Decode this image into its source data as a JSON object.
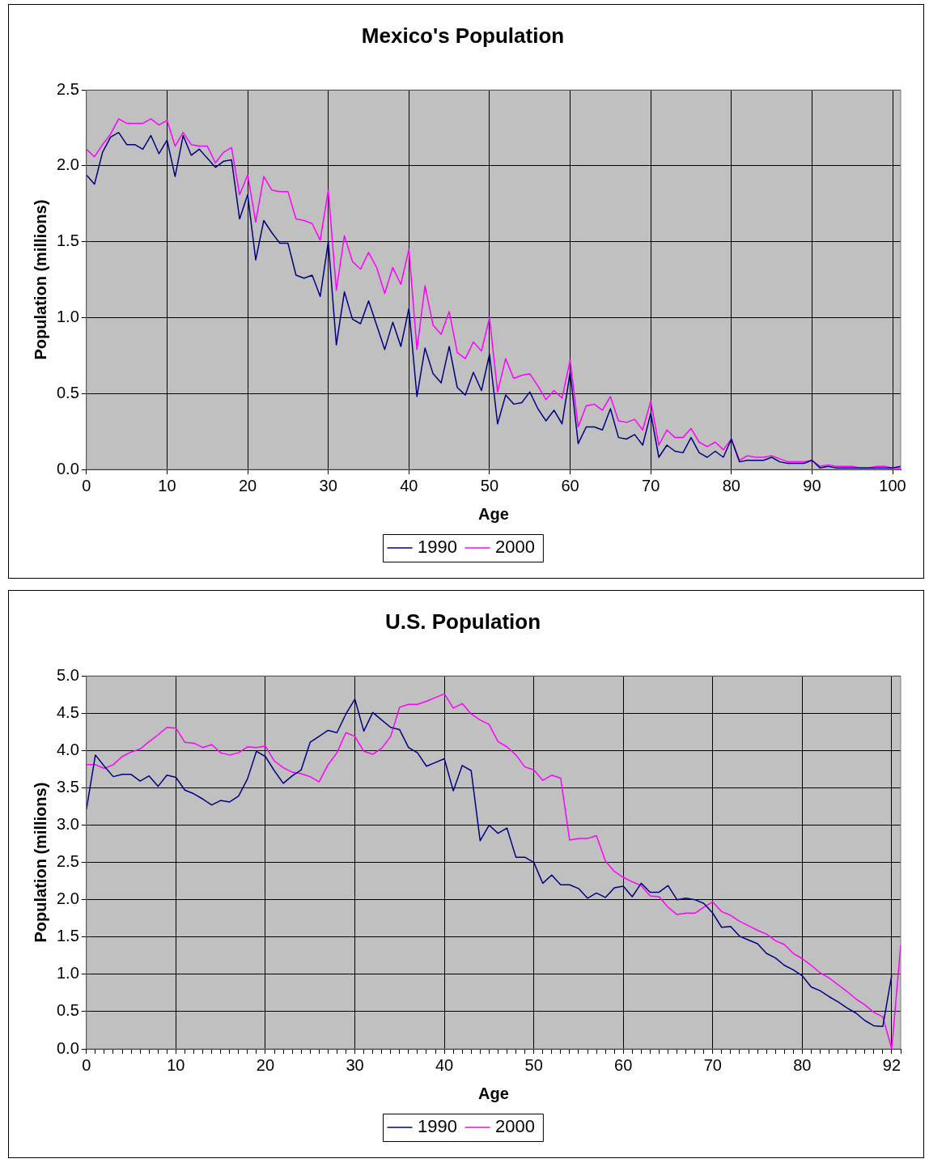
{
  "chart_data": [
    {
      "type": "line",
      "title": "Mexico's Population",
      "xlabel": "Age",
      "ylabel": "Population (millions)",
      "x": [
        0,
        1,
        2,
        3,
        4,
        5,
        6,
        7,
        8,
        9,
        10,
        11,
        12,
        13,
        14,
        15,
        16,
        17,
        18,
        19,
        20,
        21,
        22,
        23,
        24,
        25,
        26,
        27,
        28,
        29,
        30,
        31,
        32,
        33,
        34,
        35,
        36,
        37,
        38,
        39,
        40,
        41,
        42,
        43,
        44,
        45,
        46,
        47,
        48,
        49,
        50,
        51,
        52,
        53,
        54,
        55,
        56,
        57,
        58,
        59,
        60,
        61,
        62,
        63,
        64,
        65,
        66,
        67,
        68,
        69,
        70,
        71,
        72,
        73,
        74,
        75,
        76,
        77,
        78,
        79,
        80,
        81,
        82,
        83,
        84,
        85,
        86,
        87,
        88,
        89,
        90,
        91,
        92,
        93,
        94,
        95,
        96,
        97,
        98,
        99,
        100,
        101
      ],
      "series": [
        {
          "name": "1990",
          "color": "#000080",
          "values": [
            1.94,
            1.88,
            2.09,
            2.19,
            2.22,
            2.14,
            2.14,
            2.11,
            2.2,
            2.08,
            2.17,
            1.93,
            2.2,
            2.07,
            2.11,
            2.05,
            1.99,
            2.03,
            2.04,
            1.65,
            1.81,
            1.38,
            1.64,
            1.56,
            1.49,
            1.49,
            1.28,
            1.26,
            1.28,
            1.14,
            1.5,
            0.82,
            1.17,
            0.99,
            0.96,
            1.11,
            0.95,
            0.79,
            0.97,
            0.81,
            1.06,
            0.48,
            0.8,
            0.63,
            0.57,
            0.81,
            0.54,
            0.49,
            0.64,
            0.52,
            0.76,
            0.3,
            0.49,
            0.43,
            0.44,
            0.51,
            0.4,
            0.32,
            0.39,
            0.3,
            0.64,
            0.17,
            0.28,
            0.28,
            0.26,
            0.4,
            0.21,
            0.2,
            0.23,
            0.16,
            0.37,
            0.08,
            0.16,
            0.12,
            0.11,
            0.21,
            0.11,
            0.08,
            0.12,
            0.08,
            0.2,
            0.05,
            0.06,
            0.06,
            0.06,
            0.08,
            0.05,
            0.04,
            0.04,
            0.04,
            0.06,
            0.01,
            0.02,
            0.01,
            0.01,
            0.01,
            0.01,
            0.01,
            0.01,
            0.01,
            0.01,
            0.02
          ]
        },
        {
          "name": "2000",
          "color": "#ff00ff",
          "values": [
            2.11,
            2.06,
            2.14,
            2.21,
            2.31,
            2.28,
            2.28,
            2.28,
            2.31,
            2.27,
            2.3,
            2.13,
            2.22,
            2.14,
            2.13,
            2.13,
            2.02,
            2.09,
            2.12,
            1.81,
            1.94,
            1.63,
            1.93,
            1.84,
            1.83,
            1.83,
            1.65,
            1.64,
            1.62,
            1.51,
            1.84,
            1.18,
            1.54,
            1.37,
            1.32,
            1.43,
            1.33,
            1.16,
            1.33,
            1.22,
            1.45,
            0.79,
            1.21,
            0.95,
            0.89,
            1.04,
            0.77,
            0.73,
            0.84,
            0.78,
            1.0,
            0.51,
            0.73,
            0.6,
            0.62,
            0.63,
            0.55,
            0.46,
            0.52,
            0.47,
            0.72,
            0.28,
            0.42,
            0.43,
            0.39,
            0.48,
            0.32,
            0.31,
            0.33,
            0.26,
            0.45,
            0.16,
            0.26,
            0.21,
            0.21,
            0.27,
            0.18,
            0.15,
            0.18,
            0.13,
            0.2,
            0.06,
            0.09,
            0.08,
            0.08,
            0.09,
            0.07,
            0.05,
            0.05,
            0.05,
            0.06,
            0.02,
            0.03,
            0.02,
            0.02,
            0.02,
            0.01,
            0.01,
            0.02,
            0.02,
            0.01,
            0.01
          ]
        }
      ],
      "xlim": [
        0,
        101
      ],
      "xticks": [
        0,
        10,
        20,
        30,
        40,
        50,
        60,
        70,
        80,
        90,
        100
      ],
      "ylim": [
        0,
        2.5
      ],
      "yticks": [
        {
          "value": 0,
          "label": "0.0"
        },
        {
          "value": 0.5,
          "label": "0.5"
        },
        {
          "value": 1,
          "label": "1.0"
        },
        {
          "value": 1.5,
          "label": "1.5"
        },
        {
          "value": 2,
          "label": "2.0"
        },
        {
          "value": 2.5,
          "label": "2.5"
        }
      ],
      "grid": true,
      "legend": "bottom"
    },
    {
      "type": "line",
      "title": "U.S. Population",
      "xlabel": "Age",
      "ylabel": "Population (millions)",
      "categories": [
        "0",
        null,
        null,
        null,
        null,
        null,
        null,
        null,
        null,
        null,
        "10",
        null,
        null,
        null,
        null,
        null,
        null,
        null,
        null,
        null,
        "20",
        null,
        null,
        null,
        null,
        null,
        null,
        null,
        null,
        null,
        "30",
        null,
        null,
        null,
        null,
        null,
        null,
        null,
        null,
        null,
        "40",
        null,
        null,
        null,
        null,
        null,
        null,
        null,
        null,
        null,
        "50",
        null,
        null,
        null,
        null,
        null,
        null,
        null,
        null,
        null,
        "60",
        null,
        null,
        null,
        null,
        null,
        null,
        null,
        null,
        null,
        "70",
        null,
        null,
        null,
        null,
        null,
        null,
        null,
        null,
        null,
        "80",
        null,
        null,
        null,
        null,
        null,
        null,
        null,
        null,
        null,
        "92",
        null
      ],
      "series": [
        {
          "name": "1990",
          "color": "#000080",
          "values": [
            3.21,
            3.94,
            3.79,
            3.65,
            3.68,
            3.68,
            3.59,
            3.66,
            3.52,
            3.67,
            3.64,
            3.47,
            3.42,
            3.35,
            3.27,
            3.33,
            3.31,
            3.39,
            3.62,
            3.99,
            3.92,
            3.73,
            3.56,
            3.66,
            3.74,
            4.11,
            4.19,
            4.27,
            4.24,
            4.49,
            4.69,
            4.26,
            4.51,
            4.41,
            4.31,
            4.28,
            4.04,
            3.97,
            3.79,
            3.84,
            3.89,
            3.46,
            3.8,
            3.73,
            2.79,
            3.0,
            2.89,
            2.96,
            2.57,
            2.57,
            2.5,
            2.22,
            2.33,
            2.2,
            2.2,
            2.15,
            2.02,
            2.09,
            2.03,
            2.16,
            2.18,
            2.04,
            2.22,
            2.1,
            2.1,
            2.19,
            2.0,
            2.02,
            2.0,
            1.95,
            1.82,
            1.63,
            1.64,
            1.51,
            1.46,
            1.41,
            1.28,
            1.22,
            1.12,
            1.06,
            0.98,
            0.83,
            0.78,
            0.7,
            0.63,
            0.55,
            0.48,
            0.38,
            0.31,
            0.3,
            0.99,
            null
          ]
        },
        {
          "name": "2000",
          "color": "#ff00ff",
          "values": [
            3.81,
            3.81,
            3.76,
            3.81,
            3.92,
            3.98,
            4.02,
            4.12,
            4.21,
            4.31,
            4.3,
            4.11,
            4.1,
            4.04,
            4.08,
            3.97,
            3.94,
            3.97,
            4.05,
            4.04,
            4.06,
            3.86,
            3.77,
            3.71,
            3.69,
            3.65,
            3.58,
            3.81,
            3.97,
            4.24,
            4.19,
            3.99,
            3.95,
            4.03,
            4.19,
            4.58,
            4.62,
            4.62,
            4.66,
            4.71,
            4.76,
            4.57,
            4.63,
            4.49,
            4.41,
            4.35,
            4.12,
            4.05,
            3.94,
            3.78,
            3.74,
            3.6,
            3.67,
            3.63,
            2.8,
            2.82,
            2.82,
            2.86,
            2.52,
            2.38,
            2.3,
            2.24,
            2.19,
            2.05,
            2.04,
            1.9,
            1.8,
            1.82,
            1.82,
            1.9,
            1.97,
            1.84,
            1.79,
            1.71,
            1.65,
            1.59,
            1.54,
            1.45,
            1.4,
            1.28,
            1.21,
            1.12,
            1.02,
            0.95,
            0.86,
            0.77,
            0.67,
            0.59,
            0.49,
            0.43,
            0,
            1.39
          ]
        }
      ],
      "ylim": [
        0,
        5
      ],
      "yticks": [
        {
          "value": 0,
          "label": "0.0"
        },
        {
          "value": 0.5,
          "label": "0.5"
        },
        {
          "value": 1,
          "label": "1.0"
        },
        {
          "value": 1.5,
          "label": "1.5"
        },
        {
          "value": 2,
          "label": "2.0"
        },
        {
          "value": 2.5,
          "label": "2.5"
        },
        {
          "value": 3,
          "label": "3.0"
        },
        {
          "value": 3.5,
          "label": "3.5"
        },
        {
          "value": 4,
          "label": "4.0"
        },
        {
          "value": 4.5,
          "label": "4.5"
        },
        {
          "value": 5,
          "label": "5.0"
        }
      ],
      "grid": true,
      "legend": "bottom"
    }
  ]
}
